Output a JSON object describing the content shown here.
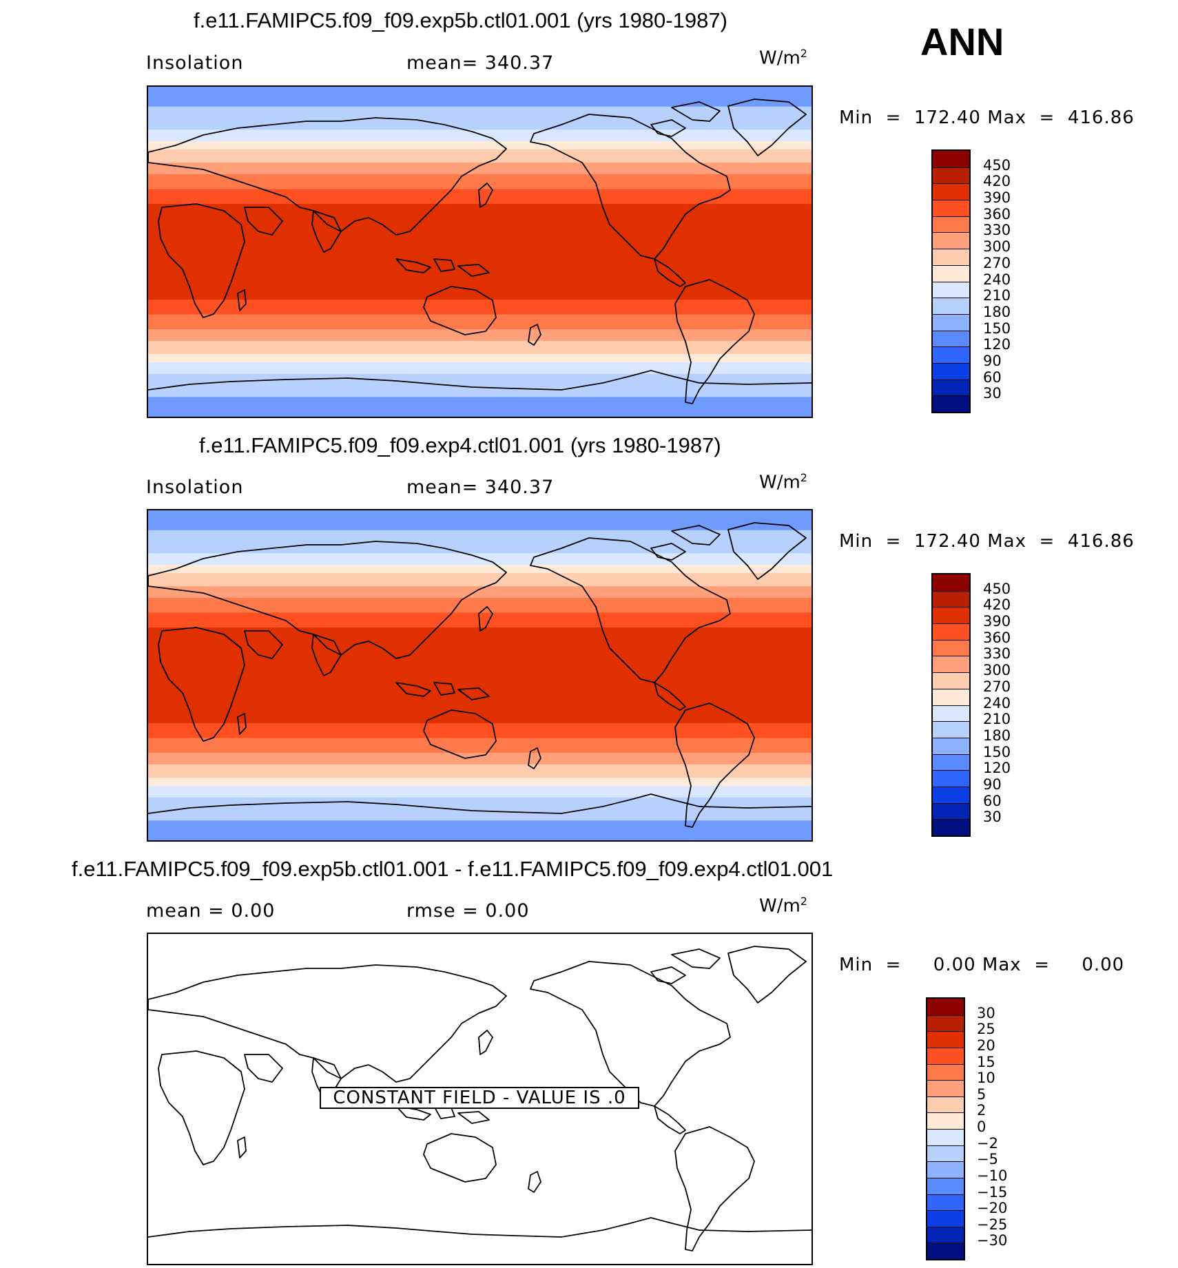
{
  "season": "ANN",
  "panels": [
    {
      "title": "f.e11.FAMIPC5.f09_f09.exp5b.ctl01.001 (yrs 1980-1987)",
      "left_label": "Insolation",
      "center_label": "mean=  340.37",
      "units": "W/m",
      "units_sup": "2",
      "minmax": "Min  =  172.40 Max  =  416.86",
      "colorbar_labels": [
        "450",
        "420",
        "390",
        "360",
        "330",
        "300",
        "270",
        "240",
        "210",
        "180",
        "150",
        "120",
        "90",
        "60",
        "30"
      ]
    },
    {
      "title": "f.e11.FAMIPC5.f09_f09.exp4.ctl01.001 (yrs 1980-1987)",
      "left_label": "Insolation",
      "center_label": "mean=  340.37",
      "units": "W/m",
      "units_sup": "2",
      "minmax": "Min  =  172.40 Max  =  416.86",
      "colorbar_labels": [
        "450",
        "420",
        "390",
        "360",
        "330",
        "300",
        "270",
        "240",
        "210",
        "180",
        "150",
        "120",
        "90",
        "60",
        "30"
      ]
    },
    {
      "title": "f.e11.FAMIPC5.f09_f09.exp5b.ctl01.001 - f.e11.FAMIPC5.f09_f09.exp4.ctl01.001",
      "left_label": "mean =     0.00",
      "center_label": "rmse =     0.00",
      "units": "W/m",
      "units_sup": "2",
      "minmax": "Min  =     0.00 Max  =     0.00",
      "colorbar_labels": [
        "30",
        "25",
        "20",
        "15",
        "10",
        "5",
        "2",
        "0",
        "−2",
        "−5",
        "−10",
        "−15",
        "−20",
        "−25",
        "−30"
      ],
      "constant_field_label": "CONSTANT FIELD - VALUE IS .0"
    }
  ],
  "colors": {
    "colorbar": [
      "#8c0000",
      "#b82000",
      "#e03000",
      "#ff5022",
      "#ff7a4a",
      "#ffa07a",
      "#ffccb0",
      "#ffeada",
      "#d9e8ff",
      "#b7d1ff",
      "#8fb2ff",
      "#5b8cff",
      "#2e66ff",
      "#0a40e6",
      "#0024b3",
      "#001080"
    ],
    "map_bands": [
      "#6f9bff",
      "#b7d1ff",
      "#d9e8ff",
      "#ffeada",
      "#ffccb0",
      "#ffa07a",
      "#ff7a4a",
      "#ff5022",
      "#e03000"
    ]
  }
}
